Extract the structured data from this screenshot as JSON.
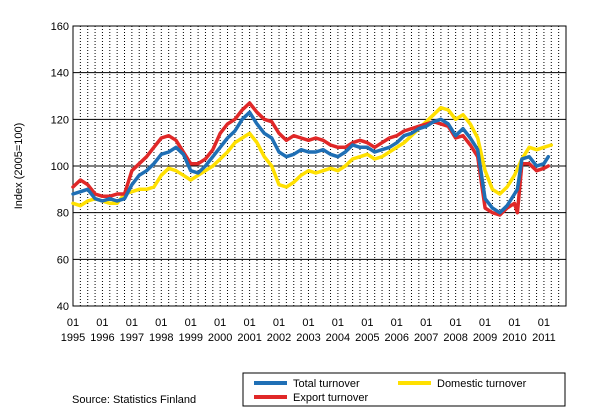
{
  "chart_data": {
    "type": "line",
    "ylabel": "Index (2005=100)",
    "ylim": [
      40,
      160
    ],
    "yticks": [
      "40",
      "60",
      "80",
      "100",
      "120",
      "140",
      "160"
    ],
    "xlim": [
      1995.0,
      2011.75
    ],
    "x_tick_month": "01",
    "x_tick_years": [
      "1995",
      "1996",
      "1997",
      "1998",
      "1999",
      "2000",
      "2001",
      "2002",
      "2003",
      "2004",
      "2005",
      "2006",
      "2007",
      "2008",
      "2009",
      "2010",
      "2011"
    ],
    "grid": "vertical dashed quarterly, horizontal solid",
    "legend_position": "bottom-right",
    "source": "Source: Statistics Finland",
    "series": [
      {
        "name": "Total turnover",
        "color": "#1f6fb5",
        "points": [
          [
            1995.0,
            88
          ],
          [
            1995.25,
            89
          ],
          [
            1995.5,
            90
          ],
          [
            1995.75,
            86
          ],
          [
            1996.0,
            85
          ],
          [
            1996.25,
            86
          ],
          [
            1996.5,
            85
          ],
          [
            1996.75,
            86
          ],
          [
            1997.0,
            92
          ],
          [
            1997.25,
            96
          ],
          [
            1997.5,
            98
          ],
          [
            1997.75,
            101
          ],
          [
            1998.0,
            105
          ],
          [
            1998.25,
            106
          ],
          [
            1998.5,
            108
          ],
          [
            1998.75,
            105
          ],
          [
            1999.0,
            98
          ],
          [
            1999.25,
            97
          ],
          [
            1999.5,
            100
          ],
          [
            1999.75,
            104
          ],
          [
            2000.0,
            108
          ],
          [
            2000.25,
            112
          ],
          [
            2000.5,
            115
          ],
          [
            2000.75,
            120
          ],
          [
            2001.0,
            123
          ],
          [
            2001.25,
            118
          ],
          [
            2001.5,
            114
          ],
          [
            2001.75,
            112
          ],
          [
            2002.0,
            106
          ],
          [
            2002.25,
            104
          ],
          [
            2002.5,
            105
          ],
          [
            2002.75,
            107
          ],
          [
            2003.0,
            106
          ],
          [
            2003.25,
            106
          ],
          [
            2003.5,
            107
          ],
          [
            2003.75,
            105
          ],
          [
            2004.0,
            104
          ],
          [
            2004.25,
            106
          ],
          [
            2004.5,
            109
          ],
          [
            2004.75,
            108
          ],
          [
            2005.0,
            108
          ],
          [
            2005.25,
            106
          ],
          [
            2005.5,
            107
          ],
          [
            2005.75,
            108
          ],
          [
            2006.0,
            110
          ],
          [
            2006.25,
            113
          ],
          [
            2006.5,
            114
          ],
          [
            2006.75,
            116
          ],
          [
            2007.0,
            117
          ],
          [
            2007.25,
            119
          ],
          [
            2007.5,
            120
          ],
          [
            2007.75,
            118
          ],
          [
            2008.0,
            113
          ],
          [
            2008.25,
            116
          ],
          [
            2008.5,
            112
          ],
          [
            2008.75,
            107
          ],
          [
            2009.0,
            86
          ],
          [
            2009.25,
            82
          ],
          [
            2009.5,
            80
          ],
          [
            2009.75,
            83
          ],
          [
            2010.0,
            88
          ],
          [
            2010.1,
            90
          ],
          [
            2010.25,
            103
          ],
          [
            2010.5,
            104
          ],
          [
            2010.75,
            100
          ],
          [
            2011.0,
            101
          ],
          [
            2011.15,
            104
          ]
        ]
      },
      {
        "name": "Domestic turnover",
        "color": "#ffe000",
        "points": [
          [
            1995.0,
            84
          ],
          [
            1995.25,
            83
          ],
          [
            1995.5,
            85
          ],
          [
            1995.75,
            86
          ],
          [
            1996.0,
            85
          ],
          [
            1996.25,
            84
          ],
          [
            1996.5,
            84
          ],
          [
            1996.75,
            88
          ],
          [
            1997.0,
            89
          ],
          [
            1997.25,
            90
          ],
          [
            1997.5,
            90
          ],
          [
            1997.75,
            91
          ],
          [
            1998.0,
            96
          ],
          [
            1998.25,
            99
          ],
          [
            1998.5,
            98
          ],
          [
            1998.75,
            96
          ],
          [
            1999.0,
            94
          ],
          [
            1999.25,
            96
          ],
          [
            1999.5,
            98
          ],
          [
            1999.75,
            100
          ],
          [
            2000.0,
            103
          ],
          [
            2000.25,
            106
          ],
          [
            2000.5,
            110
          ],
          [
            2000.75,
            112
          ],
          [
            2001.0,
            114
          ],
          [
            2001.25,
            110
          ],
          [
            2001.5,
            104
          ],
          [
            2001.75,
            100
          ],
          [
            2002.0,
            92
          ],
          [
            2002.25,
            91
          ],
          [
            2002.5,
            93
          ],
          [
            2002.75,
            96
          ],
          [
            2003.0,
            98
          ],
          [
            2003.25,
            97
          ],
          [
            2003.5,
            98
          ],
          [
            2003.75,
            99
          ],
          [
            2004.0,
            98
          ],
          [
            2004.25,
            100
          ],
          [
            2004.5,
            103
          ],
          [
            2004.75,
            104
          ],
          [
            2005.0,
            105
          ],
          [
            2005.25,
            103
          ],
          [
            2005.5,
            104
          ],
          [
            2005.75,
            106
          ],
          [
            2006.0,
            108
          ],
          [
            2006.25,
            110
          ],
          [
            2006.5,
            113
          ],
          [
            2006.75,
            116
          ],
          [
            2007.0,
            119
          ],
          [
            2007.25,
            122
          ],
          [
            2007.5,
            125
          ],
          [
            2007.75,
            124
          ],
          [
            2008.0,
            120
          ],
          [
            2008.25,
            122
          ],
          [
            2008.5,
            118
          ],
          [
            2008.75,
            112
          ],
          [
            2009.0,
            98
          ],
          [
            2009.25,
            90
          ],
          [
            2009.5,
            88
          ],
          [
            2009.75,
            91
          ],
          [
            2010.0,
            96
          ],
          [
            2010.25,
            103
          ],
          [
            2010.5,
            108
          ],
          [
            2010.75,
            107
          ],
          [
            2011.0,
            108
          ],
          [
            2011.25,
            109
          ]
        ]
      },
      {
        "name": "Export turnover",
        "color": "#e02828",
        "points": [
          [
            1995.0,
            91
          ],
          [
            1995.25,
            94
          ],
          [
            1995.5,
            92
          ],
          [
            1995.75,
            88
          ],
          [
            1996.0,
            87
          ],
          [
            1996.25,
            87
          ],
          [
            1996.5,
            88
          ],
          [
            1996.75,
            88
          ],
          [
            1997.0,
            98
          ],
          [
            1997.25,
            101
          ],
          [
            1997.5,
            104
          ],
          [
            1997.75,
            108
          ],
          [
            1998.0,
            112
          ],
          [
            1998.25,
            113
          ],
          [
            1998.5,
            111
          ],
          [
            1998.75,
            106
          ],
          [
            1999.0,
            101
          ],
          [
            1999.25,
            101
          ],
          [
            1999.5,
            103
          ],
          [
            1999.75,
            107
          ],
          [
            2000.0,
            114
          ],
          [
            2000.25,
            118
          ],
          [
            2000.5,
            120
          ],
          [
            2000.75,
            124
          ],
          [
            2001.0,
            127
          ],
          [
            2001.25,
            123
          ],
          [
            2001.5,
            120
          ],
          [
            2001.75,
            119
          ],
          [
            2002.0,
            114
          ],
          [
            2002.25,
            111
          ],
          [
            2002.5,
            113
          ],
          [
            2002.75,
            112
          ],
          [
            2003.0,
            111
          ],
          [
            2003.25,
            112
          ],
          [
            2003.5,
            111
          ],
          [
            2003.75,
            109
          ],
          [
            2004.0,
            108
          ],
          [
            2004.25,
            108
          ],
          [
            2004.5,
            110
          ],
          [
            2004.75,
            111
          ],
          [
            2005.0,
            110
          ],
          [
            2005.25,
            108
          ],
          [
            2005.5,
            110
          ],
          [
            2005.75,
            112
          ],
          [
            2006.0,
            113
          ],
          [
            2006.25,
            115
          ],
          [
            2006.5,
            116
          ],
          [
            2006.75,
            117
          ],
          [
            2007.0,
            118
          ],
          [
            2007.25,
            119
          ],
          [
            2007.5,
            118
          ],
          [
            2007.75,
            117
          ],
          [
            2008.0,
            112
          ],
          [
            2008.25,
            113
          ],
          [
            2008.5,
            109
          ],
          [
            2008.75,
            104
          ],
          [
            2009.0,
            82
          ],
          [
            2009.25,
            80
          ],
          [
            2009.5,
            79
          ],
          [
            2009.75,
            82
          ],
          [
            2010.0,
            84
          ],
          [
            2010.1,
            80
          ],
          [
            2010.25,
            101
          ],
          [
            2010.5,
            101
          ],
          [
            2010.75,
            98
          ],
          [
            2011.0,
            99
          ],
          [
            2011.15,
            100
          ]
        ]
      }
    ]
  }
}
